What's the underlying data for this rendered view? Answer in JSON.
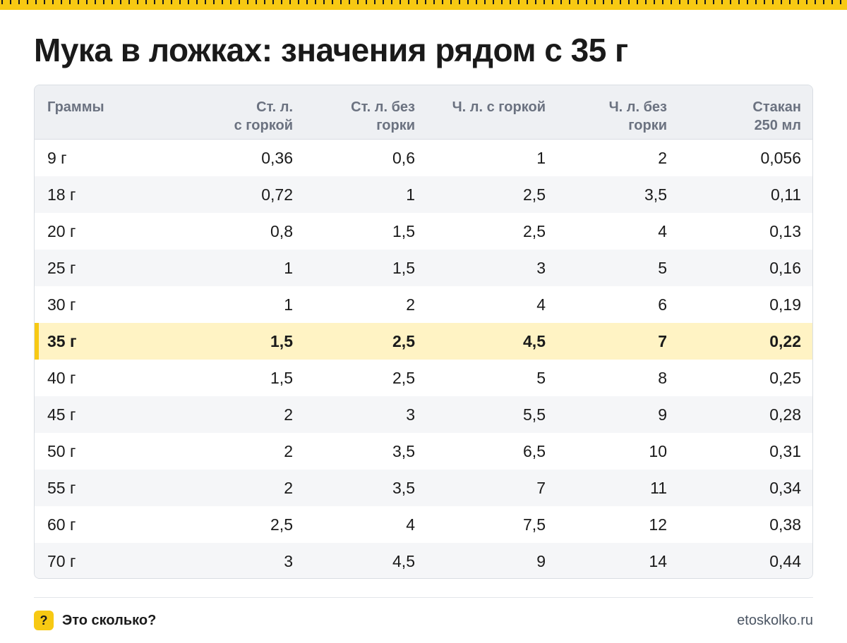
{
  "title": "Мука в ложках: значения рядом с 35 г",
  "colors": {
    "accent": "#f7c913",
    "highlight_row": "#fff3c4",
    "header_bg": "#eef0f3"
  },
  "table": {
    "headers": [
      "Граммы",
      "Ст. л.\nс горкой",
      "Ст. л. без\nгорки",
      "Ч. л. с горкой",
      "Ч. л. без\nгорки",
      "Стакан\n250 мл"
    ],
    "highlight_row_index": 5,
    "rows": [
      [
        "9 г",
        "0,36",
        "0,6",
        "1",
        "2",
        "0,056"
      ],
      [
        "18 г",
        "0,72",
        "1",
        "2,5",
        "3,5",
        "0,11"
      ],
      [
        "20 г",
        "0,8",
        "1,5",
        "2,5",
        "4",
        "0,13"
      ],
      [
        "25 г",
        "1",
        "1,5",
        "3",
        "5",
        "0,16"
      ],
      [
        "30 г",
        "1",
        "2",
        "4",
        "6",
        "0,19"
      ],
      [
        "35 г",
        "1,5",
        "2,5",
        "4,5",
        "7",
        "0,22"
      ],
      [
        "40 г",
        "1,5",
        "2,5",
        "5",
        "8",
        "0,25"
      ],
      [
        "45 г",
        "2",
        "3",
        "5,5",
        "9",
        "0,28"
      ],
      [
        "50 г",
        "2",
        "3,5",
        "6,5",
        "10",
        "0,31"
      ],
      [
        "55 г",
        "2",
        "3,5",
        "7",
        "11",
        "0,34"
      ],
      [
        "60 г",
        "2,5",
        "4",
        "7,5",
        "12",
        "0,38"
      ],
      [
        "70 г",
        "3",
        "4,5",
        "9",
        "14",
        "0,44"
      ]
    ]
  },
  "footer": {
    "badge_icon": "question-mark-icon",
    "badge_symbol": "?",
    "brand": "Это сколько?",
    "site": "etoskolko.ru"
  }
}
